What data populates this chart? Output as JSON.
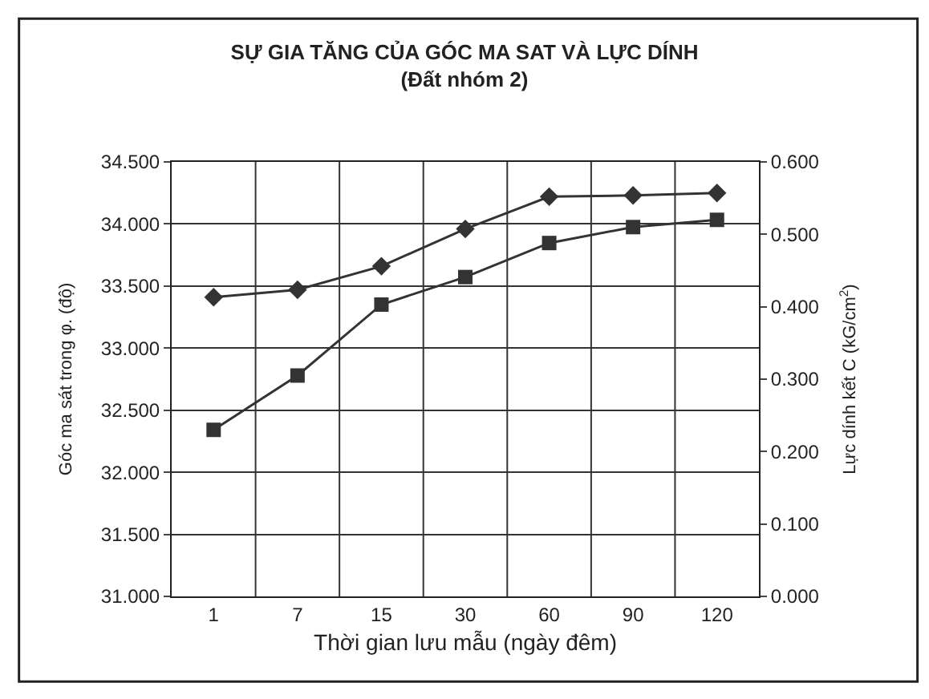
{
  "chart_data": {
    "type": "line",
    "title": "SỰ GIA TĂNG CỦA GÓC MA SAT VÀ LỰC DÍNH",
    "subtitle": "(Đất nhóm 2)",
    "xlabel": "Thời gian lưu mẫu (ngày đêm)",
    "ylabel": "Góc ma sát trong φ. (độ)",
    "y2label": "Lực dính kết C (kG/cm$^{2}$)",
    "categories": [
      "1",
      "7",
      "15",
      "30",
      "60",
      "90",
      "120"
    ],
    "series": [
      {
        "color": "#333333",
        "marker": "diamond",
        "values": [
          33.41,
          33.47,
          33.66,
          33.96,
          34.22,
          34.23,
          34.25
        ]
      },
      {
        "color": "#333333",
        "marker": "square",
        "axis": "y2",
        "values": [
          0.23,
          0.305,
          0.403,
          0.441,
          0.488,
          0.51,
          0.52
        ]
      }
    ],
    "ylim": [
      31.0,
      34.5
    ],
    "yticks": [
      {
        "value": 31.0,
        "label": "31.000"
      },
      {
        "value": 31.5,
        "label": "31.500"
      },
      {
        "value": 32.0,
        "label": "32.000"
      },
      {
        "value": 32.5,
        "label": "32.500"
      },
      {
        "value": 33.0,
        "label": "33.000"
      },
      {
        "value": 33.5,
        "label": "33.500"
      },
      {
        "value": 34.0,
        "label": "34.000"
      },
      {
        "value": 34.5,
        "label": "34.500"
      }
    ],
    "y2lim": [
      0.0,
      0.6
    ],
    "y2ticks": [
      {
        "value": 0.0,
        "label": "0.000"
      },
      {
        "value": 0.1,
        "label": "0.100"
      },
      {
        "value": 0.2,
        "label": "0.200"
      },
      {
        "value": 0.3,
        "label": "0.300"
      },
      {
        "value": 0.4,
        "label": "0.400"
      },
      {
        "value": 0.5,
        "label": "0.500"
      },
      {
        "value": 0.6,
        "label": "0.600"
      }
    ],
    "grid": true,
    "line_style": "solid"
  }
}
